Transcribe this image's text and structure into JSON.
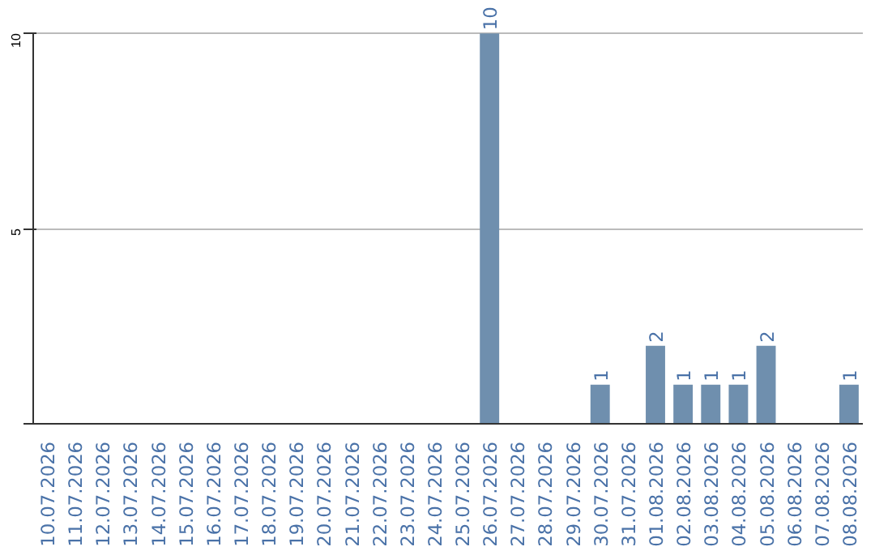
{
  "chart_data": {
    "type": "bar",
    "categories": [
      "10.07.2026",
      "11.07.2026",
      "12.07.2026",
      "13.07.2026",
      "14.07.2026",
      "15.07.2026",
      "16.07.2026",
      "17.07.2026",
      "18.07.2026",
      "19.07.2026",
      "20.07.2026",
      "21.07.2026",
      "22.07.2026",
      "23.07.2026",
      "24.07.2026",
      "25.07.2026",
      "26.07.2026",
      "27.07.2026",
      "28.07.2026",
      "29.07.2026",
      "30.07.2026",
      "31.07.2026",
      "01.08.2026",
      "02.08.2026",
      "03.08.2026",
      "04.08.2026",
      "05.08.2026",
      "06.08.2026",
      "07.08.2026",
      "08.08.2026"
    ],
    "values": [
      0,
      0,
      0,
      0,
      0,
      0,
      0,
      0,
      0,
      0,
      0,
      0,
      0,
      0,
      0,
      0,
      10,
      0,
      0,
      0,
      1,
      0,
      2,
      1,
      1,
      1,
      2,
      0,
      0,
      1
    ],
    "value_labels": [
      null,
      null,
      null,
      null,
      null,
      null,
      null,
      null,
      null,
      null,
      null,
      null,
      null,
      null,
      null,
      null,
      "10",
      null,
      null,
      null,
      "1",
      null,
      "2",
      "1",
      "1",
      "1",
      "2",
      null,
      null,
      "1"
    ],
    "color": "#6f8fae",
    "ylim": [
      0,
      10
    ],
    "yticks": [
      {
        "value": 0,
        "label": null
      },
      5,
      10
    ],
    "grid": "y"
  }
}
